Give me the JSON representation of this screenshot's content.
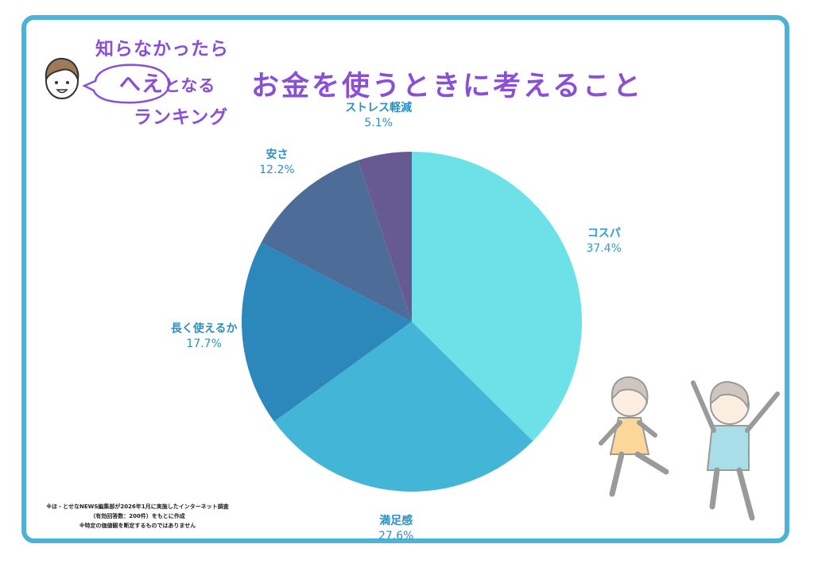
{
  "brand": {
    "line1": "知らなかったら",
    "line2_main": "へえ",
    "line2_rest": "となる",
    "line3": "ランキング"
  },
  "title": "お金を使うときに考えること",
  "chart_data": {
    "type": "pie",
    "title": "お金を使うときに考えること",
    "slices": [
      {
        "label": "コスパ",
        "value": 37.4,
        "value_text": "37.4%",
        "color": "#6ce2e8"
      },
      {
        "label": "満足感",
        "value": 27.6,
        "value_text": "27.6%",
        "color": "#43b5d6"
      },
      {
        "label": "長く使えるか",
        "value": 17.7,
        "value_text": "17.7%",
        "color": "#2c88bb"
      },
      {
        "label": "安さ",
        "value": 12.2,
        "value_text": "12.2%",
        "color": "#4e6c98"
      },
      {
        "label": "ストレス軽減",
        "value": 5.1,
        "value_text": "5.1%",
        "color": "#675a92"
      }
    ]
  },
  "footnote": {
    "line1": "※ほ・とせなNEWS編集部が2026年1月に実施したインターネット調査",
    "line2": "（有効回答数：200件）をもとに作成",
    "line3": "※特定の価値観を断定するものではありません"
  },
  "colors": {
    "accent": "#8b4fd6",
    "frame": "#4bb3d6"
  }
}
